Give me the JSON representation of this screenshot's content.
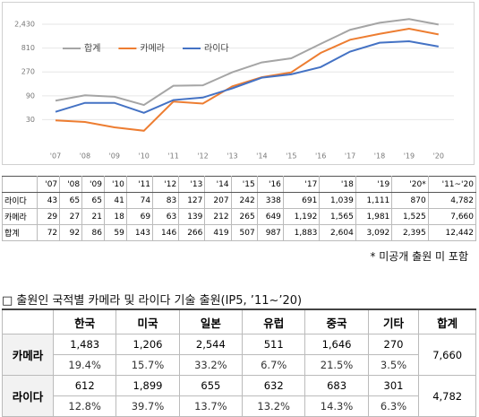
{
  "chart_data": {
    "type": "line",
    "categories": [
      "'07",
      "'08",
      "'09",
      "'10",
      "'11",
      "'12",
      "'13",
      "'14",
      "'15",
      "'16",
      "'17",
      "'18",
      "'19",
      "'20"
    ],
    "series": [
      {
        "name": "합계",
        "color": "#a5a5a5",
        "values": [
          72,
          92,
          86,
          59,
          143,
          146,
          266,
          419,
          507,
          987,
          1883,
          2604,
          3092,
          2395
        ]
      },
      {
        "name": "카메라",
        "color": "#ed7d31",
        "values": [
          29,
          27,
          21,
          18,
          69,
          63,
          139,
          212,
          265,
          649,
          1192,
          1565,
          1981,
          1525
        ]
      },
      {
        "name": "라이다",
        "color": "#4472c4",
        "values": [
          43,
          65,
          65,
          41,
          74,
          83,
          127,
          207,
          242,
          338,
          691,
          1039,
          1111,
          870
        ]
      }
    ],
    "log_scale": true,
    "ylim": [
      10,
      4000
    ],
    "yticks": [
      30,
      90,
      270,
      810,
      {
        "value": 2430,
        "label": "2,430"
      }
    ],
    "grid": true,
    "legend": "top-left"
  },
  "table1": {
    "header": [
      "'07",
      "'08",
      "'09",
      "'10",
      "'11",
      "'12",
      "'13",
      "'14",
      "'15",
      "'16",
      "'17",
      "'18",
      "'19",
      "'20*",
      "'11~'20"
    ],
    "rows": [
      [
        "라이다",
        "43",
        "65",
        "65",
        "41",
        "74",
        "83",
        "127",
        "207",
        "242",
        "338",
        "691",
        "1,039",
        "1,111",
        "870",
        "4,782"
      ],
      [
        "카메라",
        "29",
        "27",
        "21",
        "18",
        "69",
        "63",
        "139",
        "212",
        "265",
        "649",
        "1,192",
        "1,565",
        "1,981",
        "1,525",
        "7,660"
      ],
      [
        "합계",
        "72",
        "92",
        "86",
        "59",
        "143",
        "146",
        "266",
        "419",
        "507",
        "987",
        "1,883",
        "2,604",
        "3,092",
        "2,395",
        "12,442"
      ]
    ]
  },
  "note": "* 미공개 출원 미 포함",
  "section_title": "□ 출원인 국적별 카메라 및 라이다 기술 출원(IP5, ’11~’20)",
  "table2": {
    "header": [
      "한국",
      "미국",
      "일본",
      "유럽",
      "중국",
      "기타",
      "합계"
    ],
    "rows": [
      {
        "label": "카메라",
        "counts": [
          "1,483",
          "1,206",
          "2,544",
          "511",
          "1,646",
          "270"
        ],
        "shares": [
          "19.4%",
          "15.7%",
          "33.2%",
          "6.7%",
          "21.5%",
          "3.5%"
        ],
        "total": "7,660"
      },
      {
        "label": "라이다",
        "counts": [
          "612",
          "1,899",
          "655",
          "632",
          "683",
          "301"
        ],
        "shares": [
          "12.8%",
          "39.7%",
          "13.7%",
          "13.2%",
          "14.3%",
          "6.3%"
        ],
        "total": "4,782"
      }
    ]
  }
}
